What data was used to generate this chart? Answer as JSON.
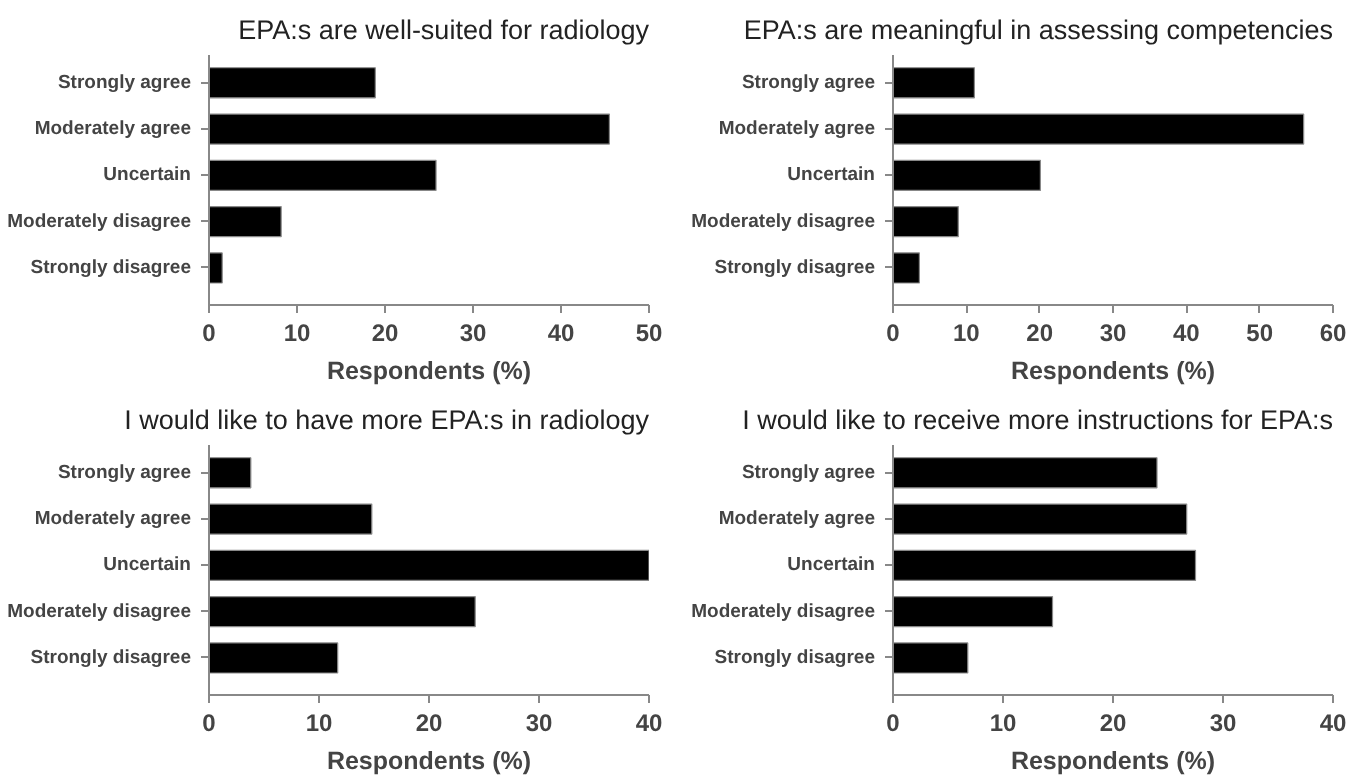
{
  "chart_data": [
    {
      "type": "bar",
      "orientation": "horizontal",
      "title": "EPA:s are well-suited for radiology",
      "xlabel": "Respondents (%)",
      "categories": [
        "Strongly agree",
        "Moderately agree",
        "Uncertain",
        "Moderately disagree",
        "Strongly disagree"
      ],
      "values": [
        18.9,
        45.5,
        25.8,
        8.2,
        1.5
      ],
      "color": "#000000",
      "xlim": [
        0,
        50
      ],
      "xticks": [
        0,
        10,
        20,
        30,
        40,
        50
      ],
      "grid": false
    },
    {
      "type": "bar",
      "orientation": "horizontal",
      "title": "EPA:s are meaningful in assessing competencies",
      "xlabel": "Respondents (%)",
      "categories": [
        "Strongly agree",
        "Moderately agree",
        "Uncertain",
        "Moderately disagree",
        "Strongly disagree"
      ],
      "values": [
        11.1,
        56.0,
        20.1,
        8.9,
        3.6
      ],
      "color": "#000000",
      "xlim": [
        0,
        60
      ],
      "xticks": [
        0,
        10,
        20,
        30,
        40,
        50,
        60
      ],
      "grid": false
    },
    {
      "type": "bar",
      "orientation": "horizontal",
      "title": "I would like to have more EPA:s in radiology",
      "xlabel": "Respondents (%)",
      "categories": [
        "Strongly agree",
        "Moderately agree",
        "Uncertain",
        "Moderately disagree",
        "Strongly disagree"
      ],
      "values": [
        3.8,
        14.8,
        40.0,
        24.2,
        11.7
      ],
      "color": "#000000",
      "xlim": [
        0,
        40
      ],
      "xticks": [
        0,
        10,
        20,
        30,
        40
      ],
      "grid": false
    },
    {
      "type": "bar",
      "orientation": "horizontal",
      "title": "I would like to receive more instructions for EPA:s",
      "xlabel": "Respondents (%)",
      "categories": [
        "Strongly agree",
        "Moderately agree",
        "Uncertain",
        "Moderately disagree",
        "Strongly disagree"
      ],
      "values": [
        24.0,
        26.7,
        27.5,
        14.5,
        6.8
      ],
      "color": "#000000",
      "xlim": [
        0,
        40
      ],
      "xticks": [
        0,
        10,
        20,
        30,
        40
      ],
      "grid": false
    }
  ]
}
